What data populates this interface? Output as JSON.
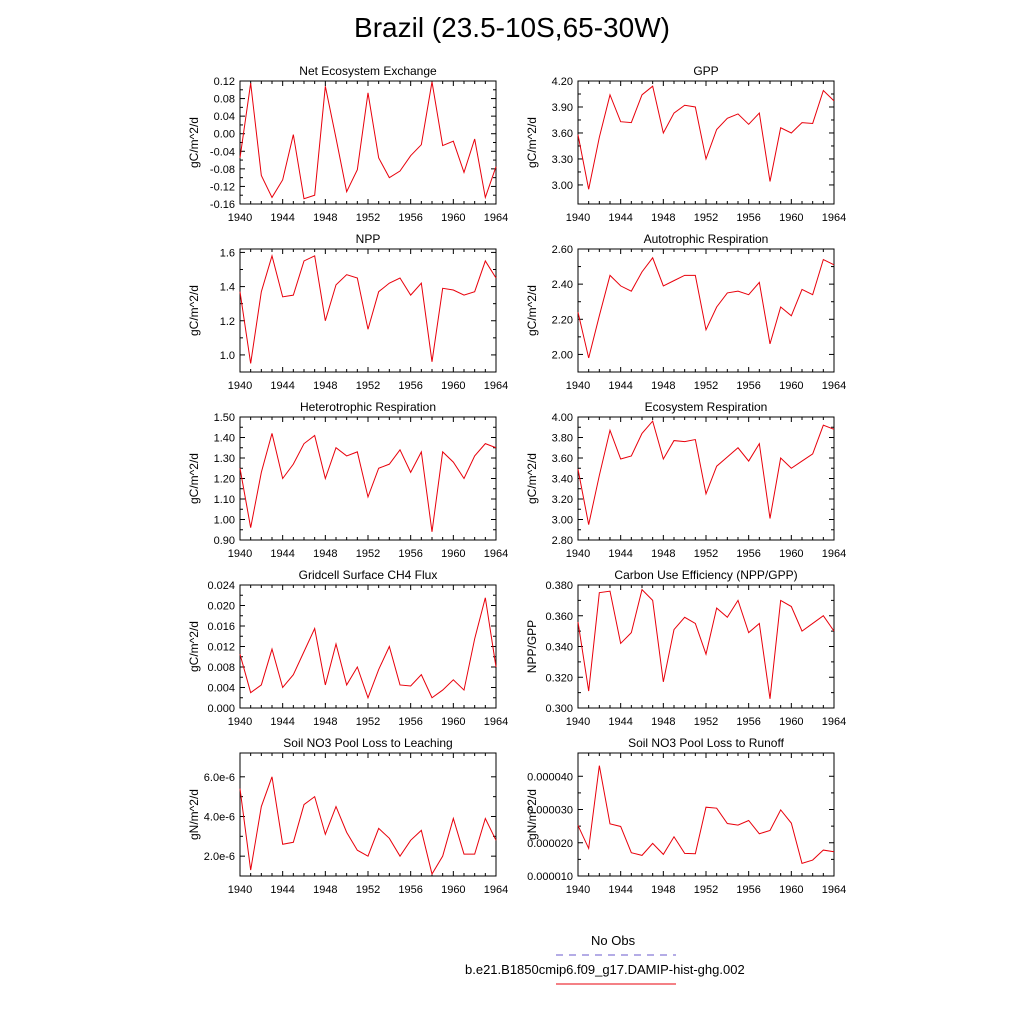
{
  "page": {
    "title": "Brazil (23.5-10S,65-30W)"
  },
  "colors": {
    "model_line": "#e8000b",
    "obs_line": "#6a5acd",
    "axis": "#000000"
  },
  "x_axis": {
    "range": [
      1940,
      1964
    ],
    "ticks": [
      1940,
      1944,
      1948,
      1952,
      1956,
      1960,
      1964
    ]
  },
  "years": [
    1940,
    1941,
    1942,
    1943,
    1944,
    1945,
    1946,
    1947,
    1948,
    1949,
    1950,
    1951,
    1952,
    1953,
    1954,
    1955,
    1956,
    1957,
    1958,
    1959,
    1960,
    1961,
    1962,
    1963,
    1964
  ],
  "legend": {
    "obs_label": "No Obs",
    "model_label": "b.e21.B1850cmip6.f09_g17.DAMIP-hist-ghg.002"
  },
  "chart_data": [
    {
      "type": "line",
      "id": "nee",
      "title": "Net Ecosystem Exchange",
      "ylabel": "gC/m^2/d",
      "ylim": [
        -0.16,
        0.12
      ],
      "yticks": [
        -0.16,
        -0.12,
        -0.08,
        -0.04,
        0.0,
        0.04,
        0.08,
        0.12
      ],
      "ytick_labels": [
        "-0.16",
        "-0.12",
        "-0.08",
        "-0.04",
        "0.00",
        "0.04",
        "0.08",
        "0.12"
      ],
      "series": [
        {
          "values": [
            -0.055,
            0.115,
            -0.095,
            -0.145,
            -0.105,
            -0.002,
            -0.148,
            -0.14,
            0.108,
            -0.01,
            -0.132,
            -0.082,
            0.093,
            -0.055,
            -0.1,
            -0.085,
            -0.05,
            -0.025,
            0.118,
            -0.027,
            -0.017,
            -0.088,
            -0.012,
            -0.145,
            -0.075
          ]
        }
      ]
    },
    {
      "type": "line",
      "id": "gpp",
      "title": "GPP",
      "ylabel": "gC/m^2/d",
      "ylim": [
        2.78,
        4.2
      ],
      "yticks": [
        3.0,
        3.3,
        3.6,
        3.9,
        4.2
      ],
      "ytick_labels": [
        "3.00",
        "3.30",
        "3.60",
        "3.90",
        "4.20"
      ],
      "series": [
        {
          "values": [
            3.58,
            2.95,
            3.55,
            4.04,
            3.73,
            3.72,
            4.04,
            4.14,
            3.6,
            3.83,
            3.92,
            3.9,
            3.3,
            3.64,
            3.77,
            3.82,
            3.7,
            3.83,
            3.04,
            3.66,
            3.6,
            3.72,
            3.71,
            4.09,
            3.97
          ]
        }
      ]
    },
    {
      "type": "line",
      "id": "npp",
      "title": "NPP",
      "ylabel": "gC/m^2/d",
      "ylim": [
        0.9,
        1.62
      ],
      "yticks": [
        1.0,
        1.2,
        1.4,
        1.6
      ],
      "ytick_labels": [
        "1.0",
        "1.2",
        "1.4",
        "1.6"
      ],
      "series": [
        {
          "values": [
            1.37,
            0.95,
            1.37,
            1.58,
            1.34,
            1.35,
            1.55,
            1.58,
            1.2,
            1.41,
            1.47,
            1.45,
            1.15,
            1.37,
            1.42,
            1.45,
            1.35,
            1.42,
            0.96,
            1.39,
            1.38,
            1.35,
            1.37,
            1.55,
            1.45
          ]
        }
      ]
    },
    {
      "type": "line",
      "id": "ar",
      "title": "Autotrophic Respiration",
      "ylabel": "gC/m^2/d",
      "ylim": [
        1.9,
        2.6
      ],
      "yticks": [
        2.0,
        2.2,
        2.4,
        2.6
      ],
      "ytick_labels": [
        "2.00",
        "2.20",
        "2.40",
        "2.60"
      ],
      "series": [
        {
          "values": [
            2.24,
            1.98,
            2.22,
            2.45,
            2.39,
            2.36,
            2.47,
            2.55,
            2.39,
            2.42,
            2.45,
            2.45,
            2.14,
            2.27,
            2.35,
            2.36,
            2.34,
            2.41,
            2.06,
            2.27,
            2.22,
            2.37,
            2.34,
            2.54,
            2.51
          ]
        }
      ]
    },
    {
      "type": "line",
      "id": "hr",
      "title": "Heterotrophic Respiration",
      "ylabel": "gC/m^2/d",
      "ylim": [
        0.9,
        1.5
      ],
      "yticks": [
        0.9,
        1.0,
        1.1,
        1.2,
        1.3,
        1.4,
        1.5
      ],
      "ytick_labels": [
        "0.90",
        "1.00",
        "1.10",
        "1.20",
        "1.30",
        "1.40",
        "1.50"
      ],
      "series": [
        {
          "values": [
            1.25,
            0.96,
            1.23,
            1.42,
            1.2,
            1.27,
            1.37,
            1.41,
            1.2,
            1.35,
            1.31,
            1.33,
            1.11,
            1.25,
            1.27,
            1.34,
            1.23,
            1.33,
            0.94,
            1.33,
            1.28,
            1.2,
            1.31,
            1.37,
            1.35
          ]
        }
      ]
    },
    {
      "type": "line",
      "id": "er",
      "title": "Ecosystem Respiration",
      "ylabel": "gC/m^2/d",
      "ylim": [
        2.8,
        4.0
      ],
      "yticks": [
        2.8,
        3.0,
        3.2,
        3.4,
        3.6,
        3.8,
        4.0
      ],
      "ytick_labels": [
        "2.80",
        "3.00",
        "3.20",
        "3.40",
        "3.60",
        "3.80",
        "4.00"
      ],
      "series": [
        {
          "values": [
            3.49,
            2.95,
            3.43,
            3.87,
            3.59,
            3.62,
            3.84,
            3.96,
            3.59,
            3.77,
            3.76,
            3.78,
            3.25,
            3.52,
            3.61,
            3.7,
            3.57,
            3.74,
            3.01,
            3.6,
            3.5,
            3.57,
            3.64,
            3.92,
            3.88
          ]
        }
      ]
    },
    {
      "type": "line",
      "id": "ch4",
      "title": "Gridcell Surface CH4 Flux",
      "ylabel": "gC/m^2/d",
      "ylim": [
        0.0,
        0.024
      ],
      "yticks": [
        0.0,
        0.004,
        0.008,
        0.012,
        0.016,
        0.02,
        0.024
      ],
      "ytick_labels": [
        "0.000",
        "0.004",
        "0.008",
        "0.012",
        "0.016",
        "0.020",
        "0.024"
      ],
      "series": [
        {
          "values": [
            0.0105,
            0.003,
            0.0045,
            0.0115,
            0.004,
            0.0065,
            0.011,
            0.0155,
            0.0045,
            0.0125,
            0.0045,
            0.008,
            0.002,
            0.0075,
            0.012,
            0.0045,
            0.0043,
            0.0065,
            0.002,
            0.0035,
            0.0055,
            0.0035,
            0.0135,
            0.0215,
            0.008
          ]
        }
      ]
    },
    {
      "type": "line",
      "id": "cue",
      "title": "Carbon Use Efficiency (NPP/GPP)",
      "ylabel": "NPP/GPP",
      "ylim": [
        0.3,
        0.38
      ],
      "yticks": [
        0.3,
        0.32,
        0.34,
        0.36,
        0.38
      ],
      "ytick_labels": [
        "0.300",
        "0.320",
        "0.340",
        "0.360",
        "0.380"
      ],
      "series": [
        {
          "values": [
            0.356,
            0.311,
            0.375,
            0.376,
            0.342,
            0.349,
            0.377,
            0.37,
            0.317,
            0.351,
            0.359,
            0.355,
            0.335,
            0.365,
            0.359,
            0.37,
            0.349,
            0.355,
            0.306,
            0.37,
            0.366,
            0.35,
            0.355,
            0.36,
            0.35
          ]
        }
      ]
    },
    {
      "type": "line",
      "id": "leach",
      "title": "Soil NO3 Pool Loss to Leaching",
      "ylabel": "gN/m^2/d",
      "ylim": [
        1e-06,
        7.2e-06
      ],
      "yticks": [
        2e-06,
        4e-06,
        6e-06
      ],
      "ytick_labels": [
        "2.0e-6",
        "4.0e-6",
        "6.0e-6"
      ],
      "series": [
        {
          "values": [
            5.4e-06,
            1.3e-06,
            4.5e-06,
            6e-06,
            2.6e-06,
            2.7e-06,
            4.6e-06,
            5e-06,
            3.1e-06,
            4.5e-06,
            3.2e-06,
            2.3e-06,
            2e-06,
            3.4e-06,
            2.9e-06,
            2e-06,
            2.8e-06,
            3.3e-06,
            1.1e-06,
            2e-06,
            3.9e-06,
            2.1e-06,
            2.1e-06,
            3.9e-06,
            2.8e-06
          ]
        }
      ]
    },
    {
      "type": "line",
      "id": "runoff",
      "title": "Soil NO3 Pool Loss to Runoff",
      "ylabel": "gN/m^2/d",
      "ylim": [
        1e-05,
        4.7e-05
      ],
      "yticks": [
        1e-05,
        2e-05,
        3e-05,
        4e-05
      ],
      "ytick_labels": [
        "0.000010",
        "0.000020",
        "0.000030",
        "0.000040"
      ],
      "series": [
        {
          "values": [
            2.52e-05,
            1.83e-05,
            4.32e-05,
            2.57e-05,
            2.49e-05,
            1.7e-05,
            1.62e-05,
            1.98e-05,
            1.65e-05,
            2.18e-05,
            1.68e-05,
            1.67e-05,
            3.07e-05,
            3.04e-05,
            2.58e-05,
            2.53e-05,
            2.67e-05,
            2.27e-05,
            2.37e-05,
            2.99e-05,
            2.59e-05,
            1.38e-05,
            1.48e-05,
            1.78e-05,
            1.73e-05
          ]
        }
      ]
    }
  ]
}
